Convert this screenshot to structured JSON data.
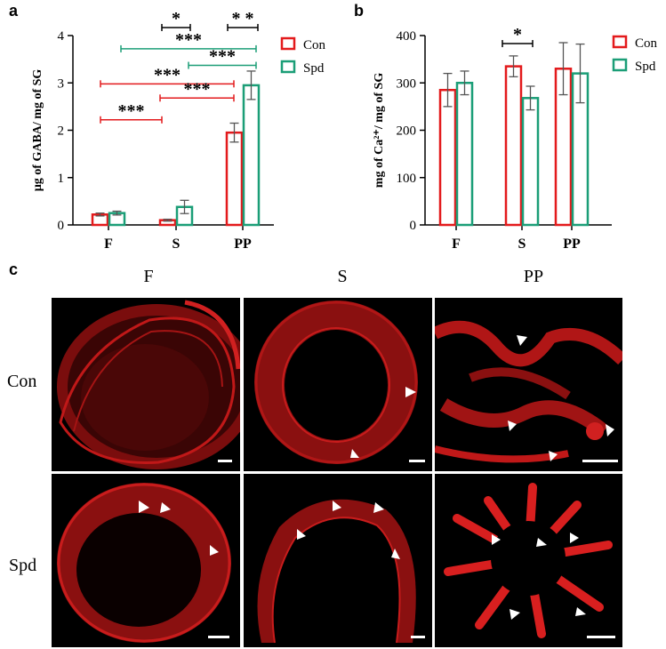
{
  "panels": {
    "a_label": "a",
    "b_label": "b",
    "c_label": "c"
  },
  "chart_data": [
    {
      "type": "bar",
      "title": "",
      "ylabel": "µg of GABA/ mg of SG",
      "xlabel": "",
      "categories": [
        "F",
        "S",
        "PP"
      ],
      "ylim": [
        0,
        4
      ],
      "yticks": [
        "0",
        "1",
        "2",
        "3",
        "4"
      ],
      "series": [
        {
          "name": "Con",
          "color": "#e31a1c",
          "values": [
            0.22,
            0.1,
            1.95
          ],
          "errors": [
            0.03,
            0.02,
            0.2
          ]
        },
        {
          "name": "Spd",
          "color": "#1b9e77",
          "values": [
            0.25,
            0.38,
            2.95
          ],
          "errors": [
            0.04,
            0.14,
            0.3
          ]
        }
      ],
      "legend": "top-right",
      "significance": [
        "*",
        "* *",
        "***",
        "***",
        "***",
        "***",
        "***",
        "***"
      ]
    },
    {
      "type": "bar",
      "title": "",
      "ylabel": "mg of Ca²⁺/ mg of SG",
      "xlabel": "",
      "categories": [
        "F",
        "S",
        "PP"
      ],
      "ylim": [
        0,
        400
      ],
      "yticks": [
        "0",
        "100",
        "200",
        "300",
        "400"
      ],
      "series": [
        {
          "name": "Con",
          "color": "#e31a1c",
          "values": [
            285,
            335,
            330
          ],
          "errors": [
            35,
            22,
            55
          ]
        },
        {
          "name": "Spd",
          "color": "#1b9e77",
          "values": [
            300,
            268,
            320
          ],
          "errors": [
            25,
            25,
            62
          ]
        }
      ],
      "legend": "top-right",
      "significance": [
        "*"
      ]
    }
  ],
  "micrographs": {
    "columns": [
      "F",
      "S",
      "PP"
    ],
    "rows": [
      "Con",
      "Spd"
    ]
  }
}
